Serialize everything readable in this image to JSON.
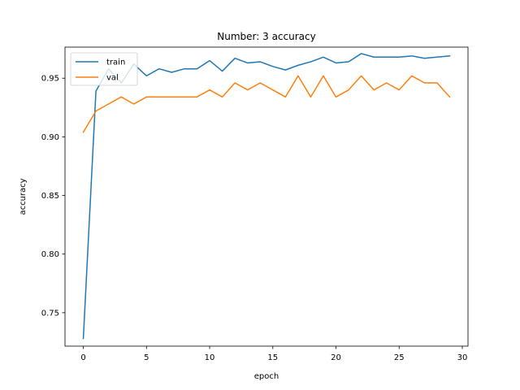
{
  "chart_data": {
    "type": "line",
    "title": "Number: 3 accuracy",
    "xlabel": "epoch",
    "ylabel": "accuracy",
    "xlim": [
      -1.45,
      30.45
    ],
    "ylim": [
      0.7215,
      0.9765
    ],
    "xticks": [
      0,
      5,
      10,
      15,
      20,
      25,
      30
    ],
    "yticks": [
      0.75,
      0.8,
      0.85,
      0.9,
      0.95
    ],
    "ytick_labels": [
      "0.75",
      "0.80",
      "0.85",
      "0.90",
      "0.95"
    ],
    "grid": false,
    "legend_position": "top-left",
    "x": [
      0,
      1,
      2,
      3,
      4,
      5,
      6,
      7,
      8,
      9,
      10,
      11,
      12,
      13,
      14,
      15,
      16,
      17,
      18,
      19,
      20,
      21,
      22,
      23,
      24,
      25,
      26,
      27,
      28,
      29
    ],
    "series": [
      {
        "name": "train",
        "color": "#1f77b4",
        "values": [
          0.728,
          0.939,
          0.958,
          0.946,
          0.962,
          0.952,
          0.958,
          0.955,
          0.958,
          0.958,
          0.965,
          0.956,
          0.967,
          0.963,
          0.964,
          0.96,
          0.957,
          0.961,
          0.964,
          0.968,
          0.963,
          0.964,
          0.971,
          0.968,
          0.968,
          0.968,
          0.969,
          0.967,
          0.968,
          0.969
        ]
      },
      {
        "name": "val",
        "color": "#ff7f0e",
        "values": [
          0.904,
          0.922,
          0.928,
          0.934,
          0.928,
          0.934,
          0.934,
          0.934,
          0.934,
          0.934,
          0.94,
          0.934,
          0.946,
          0.94,
          0.946,
          0.94,
          0.934,
          0.952,
          0.934,
          0.952,
          0.934,
          0.94,
          0.952,
          0.94,
          0.946,
          0.94,
          0.952,
          0.946,
          0.946,
          0.934
        ]
      }
    ]
  }
}
